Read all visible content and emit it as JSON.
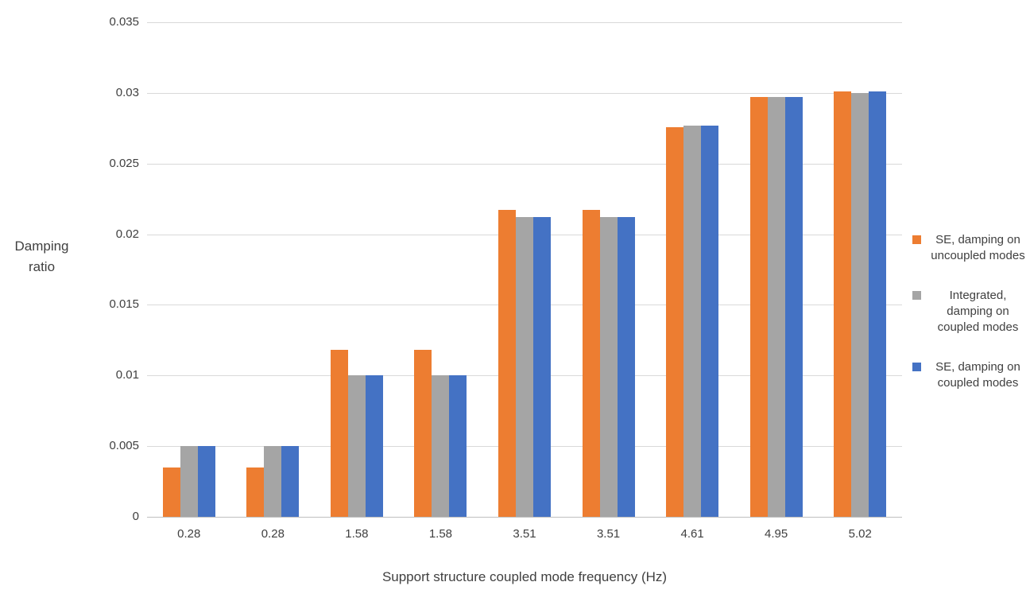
{
  "chart_data": {
    "type": "bar",
    "title": "",
    "xlabel": "Support structure coupled mode frequency (Hz)",
    "ylabel": "Damping ratio",
    "ylabel_lines": [
      "Damping",
      "ratio"
    ],
    "categories": [
      "0.28",
      "0.28",
      "1.58",
      "1.58",
      "3.51",
      "3.51",
      "4.61",
      "4.95",
      "5.02"
    ],
    "series": [
      {
        "name": "SE, damping on uncoupled modes",
        "color": "#ED7D31",
        "values": [
          0.0035,
          0.0035,
          0.0118,
          0.0118,
          0.0217,
          0.0217,
          0.0276,
          0.0297,
          0.0301
        ]
      },
      {
        "name": "Integrated, damping on coupled modes",
        "color": "#A5A5A5",
        "values": [
          0.005,
          0.005,
          0.01,
          0.01,
          0.0212,
          0.0212,
          0.0277,
          0.0297,
          0.03
        ]
      },
      {
        "name": "SE, damping on coupled modes",
        "color": "#4472C4",
        "values": [
          0.005,
          0.005,
          0.01,
          0.01,
          0.0212,
          0.0212,
          0.0277,
          0.0297,
          0.0301
        ]
      }
    ],
    "ylim": [
      0,
      0.035
    ],
    "ytick_step": 0.005,
    "yticks": [
      "0",
      "0.005",
      "0.01",
      "0.015",
      "0.02",
      "0.025",
      "0.03",
      "0.035"
    ],
    "grid": true,
    "grid_color": "#d9d9d9",
    "legend_position": "right"
  }
}
